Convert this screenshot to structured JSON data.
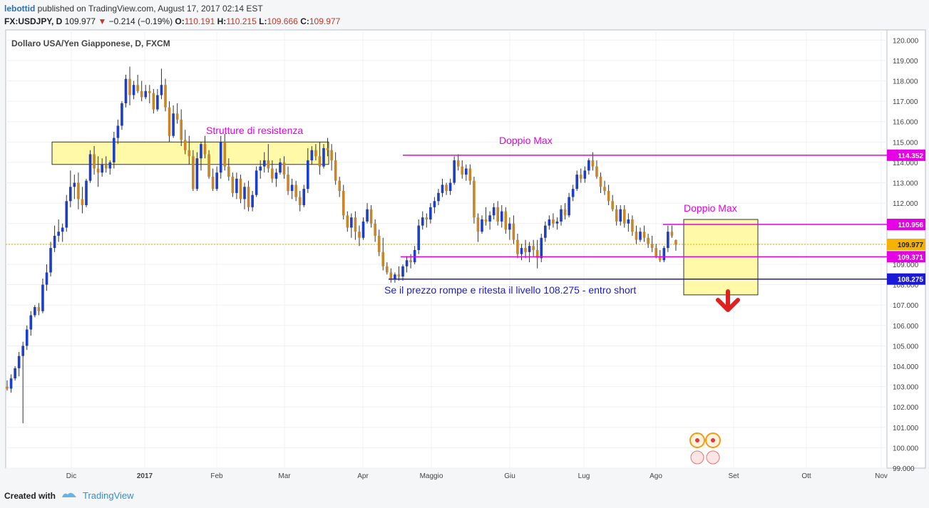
{
  "header": {
    "user": "lebottid",
    "published": "published on TradingView.com, August 17, 2017 02:14 EST",
    "symbol": "FX:USDJPY, D",
    "last": "109.977",
    "change_arrow": "▼",
    "change": "−0.214 (−0.19%)",
    "o_label": "O:",
    "o": "110.191",
    "h_label": "H:",
    "h": "110.215",
    "l_label": "L:",
    "l": "109.666",
    "c_label": "C:",
    "c": "109.977"
  },
  "footer": {
    "created_with": "Created with",
    "brand": "TradingView"
  },
  "chart_data": {
    "type": "candlestick",
    "title": "Dollaro USA/Yen Giapponese, D, FXCM",
    "ylim": [
      99.0,
      120.5
    ],
    "y_ticks": [
      "120.000",
      "119.000",
      "118.000",
      "117.000",
      "116.000",
      "115.000",
      "114.000",
      "113.000",
      "112.000",
      "111.000",
      "110.000",
      "109.000",
      "108.000",
      "107.000",
      "106.000",
      "105.000",
      "104.000",
      "103.000",
      "102.000",
      "101.000",
      "100.000",
      "99.000"
    ],
    "x_tick_labels": [
      "Dic",
      "2017",
      "Feb",
      "Mar",
      "Apr",
      "Maggio",
      "Giu",
      "Lug",
      "Ago",
      "Set",
      "Ott",
      "Nov"
    ],
    "price_labels": [
      {
        "value": 114.352,
        "text": "114.352",
        "color": "#e600e6"
      },
      {
        "value": 110.956,
        "text": "110.956",
        "color": "#e600e6"
      },
      {
        "value": 109.977,
        "text": "109.977",
        "color": "#f5b300"
      },
      {
        "value": 109.371,
        "text": "109.371",
        "color": "#e600e6"
      },
      {
        "value": 108.275,
        "text": "108.275",
        "color": "#1a1ad6"
      }
    ],
    "annotations": [
      {
        "text": "Strutture di resistenza",
        "color": "#e600e6"
      },
      {
        "text": "Doppio Max",
        "color": "#e600e6"
      },
      {
        "text": "Doppio Max",
        "color": "#e600e6"
      },
      {
        "text": "Se il prezzo rompe e ritesta il livello  108.275 - entro short",
        "color": "#1a1ad6"
      }
    ],
    "levels": [
      {
        "name": "resistenza-zona",
        "from": 113.9,
        "to": 115.0
      },
      {
        "name": "doppio-max-1",
        "value": 114.352
      },
      {
        "name": "doppio-max-2",
        "value": 110.956
      },
      {
        "name": "supporto",
        "value": 109.371
      },
      {
        "name": "livello-short",
        "value": 108.275
      }
    ],
    "ohlc": [
      [
        103.0,
        103.3,
        102.8,
        102.9
      ],
      [
        102.9,
        103.6,
        102.7,
        103.4
      ],
      [
        103.4,
        104.0,
        103.3,
        103.9
      ],
      [
        103.9,
        104.7,
        103.5,
        104.5
      ],
      [
        104.5,
        105.2,
        101.2,
        105.0
      ],
      [
        105.0,
        106.0,
        104.8,
        105.8
      ],
      [
        105.8,
        106.7,
        105.5,
        106.5
      ],
      [
        106.5,
        107.0,
        106.4,
        106.9
      ],
      [
        106.9,
        107.1,
        106.5,
        106.7
      ],
      [
        106.7,
        108.3,
        106.6,
        108.0
      ],
      [
        108.0,
        109.0,
        107.7,
        108.6
      ],
      [
        108.6,
        110.1,
        108.4,
        109.8
      ],
      [
        109.8,
        110.9,
        109.6,
        110.4
      ],
      [
        110.4,
        111.2,
        110.1,
        110.6
      ],
      [
        110.6,
        111.0,
        110.1,
        110.8
      ],
      [
        110.8,
        112.4,
        110.6,
        112.1
      ],
      [
        112.1,
        113.6,
        111.8,
        112.8
      ],
      [
        112.8,
        113.4,
        112.2,
        113.0
      ],
      [
        113.0,
        113.5,
        111.7,
        112.2
      ],
      [
        112.2,
        112.8,
        111.5,
        111.9
      ],
      [
        111.9,
        113.2,
        111.8,
        113.1
      ],
      [
        113.1,
        114.6,
        113.0,
        114.4
      ],
      [
        114.4,
        114.8,
        113.4,
        113.7
      ],
      [
        113.7,
        114.3,
        112.8,
        113.5
      ],
      [
        113.5,
        114.2,
        113.3,
        113.9
      ],
      [
        113.9,
        114.3,
        113.5,
        113.7
      ],
      [
        113.7,
        114.1,
        113.4,
        114.0
      ],
      [
        114.0,
        115.5,
        113.7,
        115.2
      ],
      [
        115.2,
        116.1,
        114.9,
        115.8
      ],
      [
        115.8,
        117.0,
        115.6,
        116.9
      ],
      [
        116.9,
        118.3,
        116.7,
        118.1
      ],
      [
        118.1,
        118.7,
        116.8,
        117.3
      ],
      [
        117.3,
        118.0,
        117.1,
        117.8
      ],
      [
        117.8,
        118.3,
        117.4,
        117.5
      ],
      [
        117.5,
        118.0,
        117.0,
        117.2
      ],
      [
        117.2,
        117.8,
        117.1,
        117.5
      ],
      [
        117.5,
        117.8,
        116.9,
        117.4
      ],
      [
        117.4,
        117.6,
        116.4,
        116.6
      ],
      [
        116.6,
        117.6,
        116.5,
        117.3
      ],
      [
        117.3,
        118.6,
        117.1,
        117.8
      ],
      [
        117.8,
        118.1,
        116.5,
        116.7
      ],
      [
        116.7,
        117.0,
        115.0,
        115.3
      ],
      [
        115.3,
        116.8,
        115.2,
        116.4
      ],
      [
        116.4,
        116.9,
        115.9,
        116.1
      ],
      [
        116.1,
        116.6,
        114.8,
        115.1
      ],
      [
        115.1,
        115.6,
        114.4,
        114.6
      ],
      [
        114.6,
        115.3,
        113.9,
        114.3
      ],
      [
        114.3,
        114.6,
        112.6,
        112.7
      ],
      [
        112.7,
        114.5,
        112.6,
        114.2
      ],
      [
        114.2,
        115.0,
        113.6,
        114.9
      ],
      [
        114.9,
        115.3,
        114.2,
        114.4
      ],
      [
        114.4,
        114.6,
        113.2,
        113.3
      ],
      [
        113.3,
        113.7,
        112.6,
        112.7
      ],
      [
        112.7,
        113.8,
        112.6,
        113.5
      ],
      [
        113.5,
        115.3,
        113.2,
        115.0
      ],
      [
        115.0,
        115.4,
        113.6,
        113.8
      ],
      [
        113.8,
        114.2,
        113.1,
        113.3
      ],
      [
        113.3,
        113.5,
        112.3,
        112.5
      ],
      [
        112.5,
        113.5,
        112.2,
        113.2
      ],
      [
        113.2,
        113.4,
        112.0,
        112.2
      ],
      [
        112.2,
        113.0,
        111.7,
        112.8
      ],
      [
        112.8,
        113.1,
        111.6,
        111.8
      ],
      [
        111.8,
        112.6,
        111.6,
        112.4
      ],
      [
        112.4,
        113.8,
        112.3,
        113.6
      ],
      [
        113.6,
        114.1,
        113.2,
        113.8
      ],
      [
        113.8,
        114.5,
        113.5,
        114.1
      ],
      [
        114.1,
        114.9,
        113.5,
        113.7
      ],
      [
        113.7,
        114.1,
        113.0,
        113.2
      ],
      [
        113.2,
        113.7,
        112.8,
        113.5
      ],
      [
        113.5,
        114.2,
        113.4,
        114.0
      ],
      [
        114.0,
        114.3,
        113.2,
        113.4
      ],
      [
        113.4,
        113.8,
        112.4,
        112.6
      ],
      [
        112.6,
        113.2,
        112.2,
        112.9
      ],
      [
        112.9,
        113.1,
        112.1,
        112.3
      ],
      [
        112.3,
        112.6,
        111.6,
        111.9
      ],
      [
        111.9,
        112.9,
        111.8,
        112.7
      ],
      [
        112.7,
        114.7,
        112.5,
        114.1
      ],
      [
        114.1,
        114.8,
        113.9,
        114.6
      ],
      [
        114.6,
        114.9,
        114.1,
        114.3
      ],
      [
        114.3,
        115.0,
        113.4,
        113.8
      ],
      [
        113.8,
        114.9,
        113.7,
        114.7
      ],
      [
        114.7,
        115.2,
        114.3,
        114.6
      ],
      [
        114.6,
        114.9,
        113.6,
        114.1
      ],
      [
        114.1,
        114.5,
        112.9,
        113.1
      ],
      [
        113.1,
        113.3,
        112.3,
        112.6
      ],
      [
        112.6,
        112.9,
        111.2,
        111.4
      ],
      [
        111.4,
        111.6,
        110.6,
        110.8
      ],
      [
        110.8,
        111.5,
        110.3,
        111.3
      ],
      [
        111.3,
        111.6,
        110.2,
        110.6
      ],
      [
        110.6,
        110.9,
        109.9,
        110.3
      ],
      [
        110.3,
        111.3,
        110.2,
        111.1
      ],
      [
        111.1,
        112.0,
        111.0,
        111.7
      ],
      [
        111.7,
        111.9,
        110.8,
        111.0
      ],
      [
        111.0,
        111.2,
        110.1,
        110.4
      ],
      [
        110.4,
        110.7,
        109.4,
        109.6
      ],
      [
        109.6,
        110.3,
        108.7,
        108.9
      ],
      [
        108.9,
        109.1,
        108.5,
        108.6
      ],
      [
        108.6,
        108.8,
        108.1,
        108.3
      ],
      [
        108.3,
        108.6,
        108.1,
        108.5
      ],
      [
        108.5,
        108.9,
        108.2,
        108.4
      ],
      [
        108.4,
        109.0,
        108.2,
        108.9
      ],
      [
        108.9,
        109.4,
        108.6,
        109.2
      ],
      [
        109.2,
        109.5,
        108.8,
        109.1
      ],
      [
        109.1,
        109.9,
        109.0,
        109.7
      ],
      [
        109.7,
        111.2,
        109.5,
        110.9
      ],
      [
        110.9,
        111.6,
        110.7,
        111.3
      ],
      [
        111.3,
        111.5,
        110.8,
        111.2
      ],
      [
        111.2,
        112.0,
        111.0,
        111.8
      ],
      [
        111.8,
        112.3,
        111.5,
        112.1
      ],
      [
        112.1,
        112.7,
        111.9,
        112.5
      ],
      [
        112.5,
        113.2,
        112.3,
        112.9
      ],
      [
        112.9,
        113.0,
        112.4,
        112.6
      ],
      [
        112.6,
        113.2,
        112.4,
        113.0
      ],
      [
        113.0,
        114.3,
        112.9,
        114.1
      ],
      [
        114.1,
        114.4,
        113.6,
        113.8
      ],
      [
        113.8,
        114.1,
        113.2,
        113.4
      ],
      [
        113.4,
        113.9,
        113.1,
        113.7
      ],
      [
        113.7,
        113.9,
        112.9,
        113.1
      ],
      [
        113.1,
        113.3,
        111.0,
        111.3
      ],
      [
        111.3,
        111.5,
        110.1,
        110.6
      ],
      [
        110.6,
        111.4,
        110.5,
        111.2
      ],
      [
        111.2,
        111.8,
        110.9,
        111.1
      ],
      [
        111.1,
        111.6,
        110.7,
        111.4
      ],
      [
        111.4,
        112.0,
        111.2,
        111.8
      ],
      [
        111.8,
        112.1,
        110.9,
        111.1
      ],
      [
        111.1,
        111.9,
        110.8,
        111.6
      ],
      [
        111.6,
        111.8,
        110.5,
        110.7
      ],
      [
        110.7,
        111.3,
        110.2,
        111.0
      ],
      [
        111.0,
        111.4,
        110.0,
        110.2
      ],
      [
        110.2,
        110.5,
        109.3,
        109.5
      ],
      [
        109.5,
        110.0,
        109.2,
        109.8
      ],
      [
        109.8,
        110.2,
        109.3,
        109.6
      ],
      [
        109.6,
        110.1,
        109.1,
        109.9
      ],
      [
        109.9,
        110.2,
        109.4,
        109.7
      ],
      [
        109.7,
        110.2,
        108.8,
        109.3
      ],
      [
        109.3,
        110.5,
        109.1,
        110.3
      ],
      [
        110.3,
        111.1,
        110.1,
        110.9
      ],
      [
        110.9,
        111.4,
        110.7,
        111.2
      ],
      [
        111.2,
        111.5,
        110.8,
        111.0
      ],
      [
        111.0,
        111.3,
        110.7,
        111.1
      ],
      [
        111.1,
        111.9,
        110.9,
        111.7
      ],
      [
        111.7,
        112.0,
        111.2,
        111.4
      ],
      [
        111.4,
        112.5,
        111.3,
        112.3
      ],
      [
        112.3,
        112.9,
        112.1,
        112.7
      ],
      [
        112.7,
        113.6,
        112.6,
        113.4
      ],
      [
        113.4,
        113.7,
        113.0,
        113.2
      ],
      [
        113.2,
        113.8,
        113.0,
        113.6
      ],
      [
        113.6,
        114.2,
        113.4,
        114.1
      ],
      [
        114.1,
        114.5,
        113.6,
        113.8
      ],
      [
        113.8,
        114.1,
        113.2,
        113.3
      ],
      [
        113.3,
        113.5,
        112.5,
        112.8
      ],
      [
        112.8,
        113.1,
        112.4,
        112.6
      ],
      [
        112.6,
        112.9,
        111.9,
        112.1
      ],
      [
        112.1,
        112.4,
        111.6,
        111.7
      ],
      [
        111.7,
        111.9,
        110.9,
        111.1
      ],
      [
        111.1,
        111.9,
        110.9,
        111.7
      ],
      [
        111.7,
        111.9,
        110.8,
        111.0
      ],
      [
        111.0,
        111.5,
        110.6,
        111.2
      ],
      [
        111.2,
        111.4,
        110.4,
        110.6
      ],
      [
        110.6,
        110.9,
        110.0,
        110.2
      ],
      [
        110.2,
        110.8,
        110.1,
        110.6
      ],
      [
        110.6,
        110.9,
        110.1,
        110.3
      ],
      [
        110.3,
        110.5,
        109.8,
        110.0
      ],
      [
        110.0,
        110.4,
        109.6,
        109.8
      ],
      [
        109.8,
        110.0,
        109.3,
        109.4
      ],
      [
        109.4,
        109.7,
        109.1,
        109.2
      ],
      [
        109.2,
        109.9,
        109.1,
        109.8
      ],
      [
        109.8,
        110.9,
        109.6,
        110.6
      ],
      [
        110.6,
        110.9,
        110.3,
        110.4
      ],
      [
        110.191,
        110.215,
        109.666,
        109.977
      ]
    ]
  }
}
